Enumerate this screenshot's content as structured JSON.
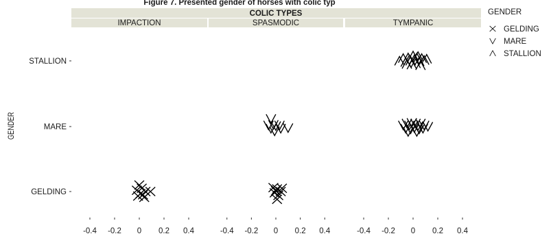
{
  "chart_data": {
    "type": "scatter",
    "title": "Figure 7. Presented gender of horses with colic typ",
    "facet_title": "COLIC TYPES",
    "facets": [
      "IMPACTION",
      "SPASMODIC",
      "TYMPANIC"
    ],
    "ylabel": "GENDER",
    "y_categories": [
      "GELDING",
      "MARE",
      "STALLION"
    ],
    "x_ticks": [
      "-0.4",
      "-0.2",
      "0",
      "0.2",
      "0.4"
    ],
    "xlim": [
      -0.55,
      0.55
    ],
    "legend": {
      "title": "GENDER",
      "position": "right",
      "entries": [
        {
          "label": "GELDING",
          "shape": "x",
          "symbol": "×"
        },
        {
          "label": "MARE",
          "shape": "v",
          "symbol": "∨"
        },
        {
          "label": "STALLION",
          "shape": "^",
          "symbol": "∧"
        }
      ]
    },
    "points": [
      {
        "facet": "IMPACTION",
        "gender": "GELDING",
        "shape": "x",
        "x": 0.0,
        "dy": 0.1
      },
      {
        "facet": "IMPACTION",
        "gender": "GELDING",
        "shape": "x",
        "x": 0.02,
        "dy": 0.05
      },
      {
        "facet": "IMPACTION",
        "gender": "GELDING",
        "shape": "x",
        "x": -0.02,
        "dy": 0.02
      },
      {
        "facet": "IMPACTION",
        "gender": "GELDING",
        "shape": "x",
        "x": 0.05,
        "dy": 0.0
      },
      {
        "facet": "IMPACTION",
        "gender": "GELDING",
        "shape": "x",
        "x": 0.09,
        "dy": 0.0
      },
      {
        "facet": "IMPACTION",
        "gender": "GELDING",
        "shape": "x",
        "x": 0.01,
        "dy": -0.03
      },
      {
        "facet": "IMPACTION",
        "gender": "GELDING",
        "shape": "x",
        "x": 0.03,
        "dy": -0.05
      },
      {
        "facet": "IMPACTION",
        "gender": "GELDING",
        "shape": "x",
        "x": -0.01,
        "dy": -0.07
      },
      {
        "facet": "IMPACTION",
        "gender": "GELDING",
        "shape": "x",
        "x": 0.04,
        "dy": -0.09
      },
      {
        "facet": "SPASMODIC",
        "gender": "GELDING",
        "shape": "x",
        "x": -0.02,
        "dy": 0.06
      },
      {
        "facet": "SPASMODIC",
        "gender": "GELDING",
        "shape": "x",
        "x": 0.01,
        "dy": 0.04
      },
      {
        "facet": "SPASMODIC",
        "gender": "GELDING",
        "shape": "x",
        "x": 0.05,
        "dy": 0.05
      },
      {
        "facet": "SPASMODIC",
        "gender": "GELDING",
        "shape": "x",
        "x": 0.0,
        "dy": 0.01
      },
      {
        "facet": "SPASMODIC",
        "gender": "GELDING",
        "shape": "x",
        "x": 0.04,
        "dy": 0.0
      },
      {
        "facet": "SPASMODIC",
        "gender": "GELDING",
        "shape": "x",
        "x": -0.01,
        "dy": -0.02
      },
      {
        "facet": "SPASMODIC",
        "gender": "GELDING",
        "shape": "x",
        "x": 0.02,
        "dy": -0.06
      },
      {
        "facet": "SPASMODIC",
        "gender": "GELDING",
        "shape": "x",
        "x": 0.01,
        "dy": -0.12
      },
      {
        "facet": "SPASMODIC",
        "gender": "MARE",
        "shape": "v",
        "x": -0.04,
        "dy": 0.12
      },
      {
        "facet": "SPASMODIC",
        "gender": "MARE",
        "shape": "v",
        "x": -0.06,
        "dy": 0.02
      },
      {
        "facet": "SPASMODIC",
        "gender": "MARE",
        "shape": "v",
        "x": -0.02,
        "dy": 0.03
      },
      {
        "facet": "SPASMODIC",
        "gender": "MARE",
        "shape": "v",
        "x": 0.0,
        "dy": 0.01
      },
      {
        "facet": "SPASMODIC",
        "gender": "MARE",
        "shape": "v",
        "x": 0.03,
        "dy": 0.02
      },
      {
        "facet": "SPASMODIC",
        "gender": "MARE",
        "shape": "v",
        "x": -0.04,
        "dy": -0.03
      },
      {
        "facet": "SPASMODIC",
        "gender": "MARE",
        "shape": "v",
        "x": 0.04,
        "dy": -0.03
      },
      {
        "facet": "SPASMODIC",
        "gender": "MARE",
        "shape": "v",
        "x": 0.1,
        "dy": -0.02
      },
      {
        "facet": "SPASMODIC",
        "gender": "MARE",
        "shape": "v",
        "x": -0.01,
        "dy": -0.07
      },
      {
        "facet": "TYMPANIC",
        "gender": "MARE",
        "shape": "v",
        "x": -0.08,
        "dy": 0.02
      },
      {
        "facet": "TYMPANIC",
        "gender": "MARE",
        "shape": "v",
        "x": -0.05,
        "dy": 0.05
      },
      {
        "facet": "TYMPANIC",
        "gender": "MARE",
        "shape": "v",
        "x": -0.03,
        "dy": 0.02
      },
      {
        "facet": "TYMPANIC",
        "gender": "MARE",
        "shape": "v",
        "x": -0.01,
        "dy": 0.06
      },
      {
        "facet": "TYMPANIC",
        "gender": "MARE",
        "shape": "v",
        "x": 0.0,
        "dy": 0.02
      },
      {
        "facet": "TYMPANIC",
        "gender": "MARE",
        "shape": "v",
        "x": 0.02,
        "dy": 0.05
      },
      {
        "facet": "TYMPANIC",
        "gender": "MARE",
        "shape": "v",
        "x": 0.04,
        "dy": 0.01
      },
      {
        "facet": "TYMPANIC",
        "gender": "MARE",
        "shape": "v",
        "x": 0.06,
        "dy": 0.05
      },
      {
        "facet": "TYMPANIC",
        "gender": "MARE",
        "shape": "v",
        "x": 0.09,
        "dy": 0.02
      },
      {
        "facet": "TYMPANIC",
        "gender": "MARE",
        "shape": "v",
        "x": 0.12,
        "dy": 0.0
      },
      {
        "facet": "TYMPANIC",
        "gender": "MARE",
        "shape": "v",
        "x": -0.06,
        "dy": -0.03
      },
      {
        "facet": "TYMPANIC",
        "gender": "MARE",
        "shape": "v",
        "x": -0.02,
        "dy": -0.04
      },
      {
        "facet": "TYMPANIC",
        "gender": "MARE",
        "shape": "v",
        "x": 0.01,
        "dy": -0.02
      },
      {
        "facet": "TYMPANIC",
        "gender": "MARE",
        "shape": "v",
        "x": 0.05,
        "dy": -0.04
      },
      {
        "facet": "TYMPANIC",
        "gender": "MARE",
        "shape": "v",
        "x": 0.08,
        "dy": -0.03
      },
      {
        "facet": "TYMPANIC",
        "gender": "MARE",
        "shape": "v",
        "x": -0.04,
        "dy": -0.08
      },
      {
        "facet": "TYMPANIC",
        "gender": "MARE",
        "shape": "v",
        "x": 0.03,
        "dy": -0.08
      },
      {
        "facet": "TYMPANIC",
        "gender": "STALLION",
        "shape": "^",
        "x": -0.11,
        "dy": 0.0
      },
      {
        "facet": "TYMPANIC",
        "gender": "STALLION",
        "shape": "^",
        "x": -0.08,
        "dy": 0.04
      },
      {
        "facet": "TYMPANIC",
        "gender": "STALLION",
        "shape": "^",
        "x": -0.06,
        "dy": -0.02
      },
      {
        "facet": "TYMPANIC",
        "gender": "STALLION",
        "shape": "^",
        "x": -0.04,
        "dy": 0.05
      },
      {
        "facet": "TYMPANIC",
        "gender": "STALLION",
        "shape": "^",
        "x": -0.02,
        "dy": 0.0
      },
      {
        "facet": "TYMPANIC",
        "gender": "STALLION",
        "shape": "^",
        "x": 0.0,
        "dy": 0.08
      },
      {
        "facet": "TYMPANIC",
        "gender": "STALLION",
        "shape": "^",
        "x": 0.01,
        "dy": 0.02
      },
      {
        "facet": "TYMPANIC",
        "gender": "STALLION",
        "shape": "^",
        "x": 0.03,
        "dy": 0.05
      },
      {
        "facet": "TYMPANIC",
        "gender": "STALLION",
        "shape": "^",
        "x": 0.05,
        "dy": -0.01
      },
      {
        "facet": "TYMPANIC",
        "gender": "STALLION",
        "shape": "^",
        "x": 0.07,
        "dy": 0.04
      },
      {
        "facet": "TYMPANIC",
        "gender": "STALLION",
        "shape": "^",
        "x": 0.09,
        "dy": 0.01
      },
      {
        "facet": "TYMPANIC",
        "gender": "STALLION",
        "shape": "^",
        "x": 0.11,
        "dy": 0.03
      },
      {
        "facet": "TYMPANIC",
        "gender": "STALLION",
        "shape": "^",
        "x": -0.05,
        "dy": -0.05
      },
      {
        "facet": "TYMPANIC",
        "gender": "STALLION",
        "shape": "^",
        "x": -0.01,
        "dy": -0.06
      },
      {
        "facet": "TYMPANIC",
        "gender": "STALLION",
        "shape": "^",
        "x": 0.02,
        "dy": -0.04
      },
      {
        "facet": "TYMPANIC",
        "gender": "STALLION",
        "shape": "^",
        "x": 0.06,
        "dy": -0.07
      },
      {
        "facet": "TYMPANIC",
        "gender": "STALLION",
        "shape": "^",
        "x": -0.03,
        "dy": 0.02
      },
      {
        "facet": "TYMPANIC",
        "gender": "STALLION",
        "shape": "^",
        "x": 0.04,
        "dy": 0.07
      }
    ],
    "colors": {
      "background": "#ffffff",
      "strip": "#e3e3d6",
      "mark": "#000000",
      "text": "#1a1a1a"
    }
  }
}
